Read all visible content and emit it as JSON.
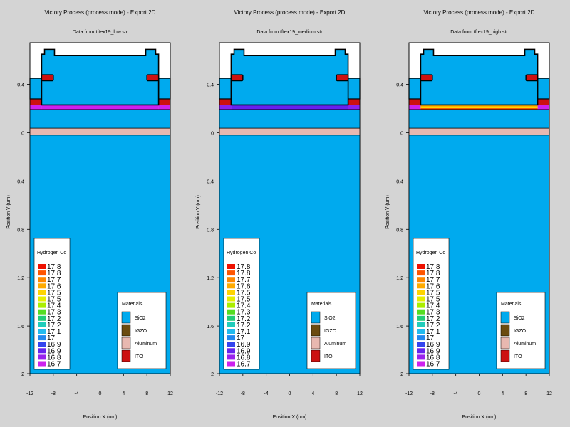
{
  "window": {
    "background": "#d4d4d4"
  },
  "colors": {
    "sio2": "#00aaee",
    "igzo": "#6b4c11",
    "aluminum": "#e8b8b0",
    "ito": "#cc1111",
    "outline": "#000000",
    "white": "#ffffff"
  },
  "legend_materials": {
    "title": "Materials",
    "items": [
      {
        "name": "SiO2",
        "color": "#00aaee"
      },
      {
        "name": "IGZO",
        "color": "#6b4c11"
      },
      {
        "name": "Aluminum",
        "color": "#e8b8b0"
      },
      {
        "name": "ITO",
        "color": "#cc1111"
      }
    ]
  },
  "legend_hydrogen": {
    "title": "Hydrogen Co",
    "labels": [
      "17.8",
      "17.8",
      "17.7",
      "17.6",
      "17.5",
      "17.5",
      "17.4",
      "17.3",
      "17.2",
      "17.2",
      "17.1",
      "17",
      "16.9",
      "16.9",
      "16.8",
      "16.7"
    ],
    "colors": [
      "#ee1100",
      "#ff5500",
      "#ff8800",
      "#ffaa00",
      "#ffd400",
      "#e6ee00",
      "#aaee00",
      "#55dd22",
      "#22cc77",
      "#22ccbb",
      "#22bbee",
      "#2288ee",
      "#3344ee",
      "#6622ee",
      "#9922ee",
      "#cc22ee"
    ]
  },
  "chart_data": [
    {
      "type": "heatmap",
      "title": "Victory Process  (process mode) - Export 2D",
      "subtitle": "Data from tftex19_low.str",
      "xlabel": "Position X (um)",
      "ylabel": "Position Y (um)",
      "xlim": [
        -12,
        12
      ],
      "ylim": [
        2,
        -0.8
      ],
      "xticks": [
        "-12",
        "-8",
        "-4",
        "0",
        "4",
        "8",
        "12"
      ],
      "xtick_values": [
        -12,
        -8,
        -4,
        0,
        4,
        8,
        12
      ],
      "yticks": [
        "-0.4",
        "0",
        "0.4",
        "0.8",
        "1.2",
        "1.6",
        "2"
      ],
      "ytick_values": [
        -0.4,
        0,
        0.4,
        0.8,
        1.2,
        1.6,
        2
      ],
      "igzo_band": {
        "x": [
          -12,
          12
        ],
        "y": [
          -0.23,
          -0.19
        ],
        "colors": [
          "#cc22ee",
          "#cc22ee",
          "#cc22ee"
        ]
      },
      "legend_position": "bottom-left and bottom-right"
    },
    {
      "type": "heatmap",
      "title": "Victory Process  (process mode) - Export 2D",
      "subtitle": "Data from tftex19_medium.str",
      "xlabel": "Position X (um)",
      "ylabel": "Position Y (um)",
      "xlim": [
        -12,
        12
      ],
      "ylim": [
        2,
        -0.8
      ],
      "xticks": [
        "-12",
        "-8",
        "-4",
        "0",
        "4",
        "8",
        "12"
      ],
      "xtick_values": [
        -12,
        -8,
        -4,
        0,
        4,
        8,
        12
      ],
      "yticks": [
        "-0.4",
        "0",
        "0.4",
        "0.8",
        "1.2",
        "1.6",
        "2"
      ],
      "ytick_values": [
        -0.4,
        0,
        0.4,
        0.8,
        1.2,
        1.6,
        2
      ],
      "igzo_band": {
        "x": [
          -12,
          12
        ],
        "y": [
          -0.23,
          -0.19
        ],
        "colors": [
          "#8822ee",
          "#6622ee",
          "#8822ee"
        ]
      },
      "legend_position": "bottom-left and bottom-right"
    },
    {
      "type": "heatmap",
      "title": "Victory Process  (process mode) - Export 2D",
      "subtitle": "Data from tftex19_high.str",
      "xlabel": "Position X (um)",
      "ylabel": "Position Y (um)",
      "xlim": [
        -12,
        12
      ],
      "ylim": [
        2,
        -0.8
      ],
      "xticks": [
        "-12",
        "-8",
        "-4",
        "0",
        "4",
        "8",
        "12"
      ],
      "xtick_values": [
        -12,
        -8,
        -4,
        0,
        4,
        8,
        12
      ],
      "yticks": [
        "-0.4",
        "0",
        "0.4",
        "0.8",
        "1.2",
        "1.6",
        "2"
      ],
      "ytick_values": [
        -0.4,
        0,
        0.4,
        0.8,
        1.2,
        1.6,
        2
      ],
      "igzo_band": {
        "x": [
          -12,
          12
        ],
        "y": [
          -0.23,
          -0.19
        ],
        "colors": [
          "#cc22ee",
          "#ffaa00",
          "#cc22ee"
        ]
      },
      "legend_position": "bottom-left and bottom-right"
    }
  ]
}
